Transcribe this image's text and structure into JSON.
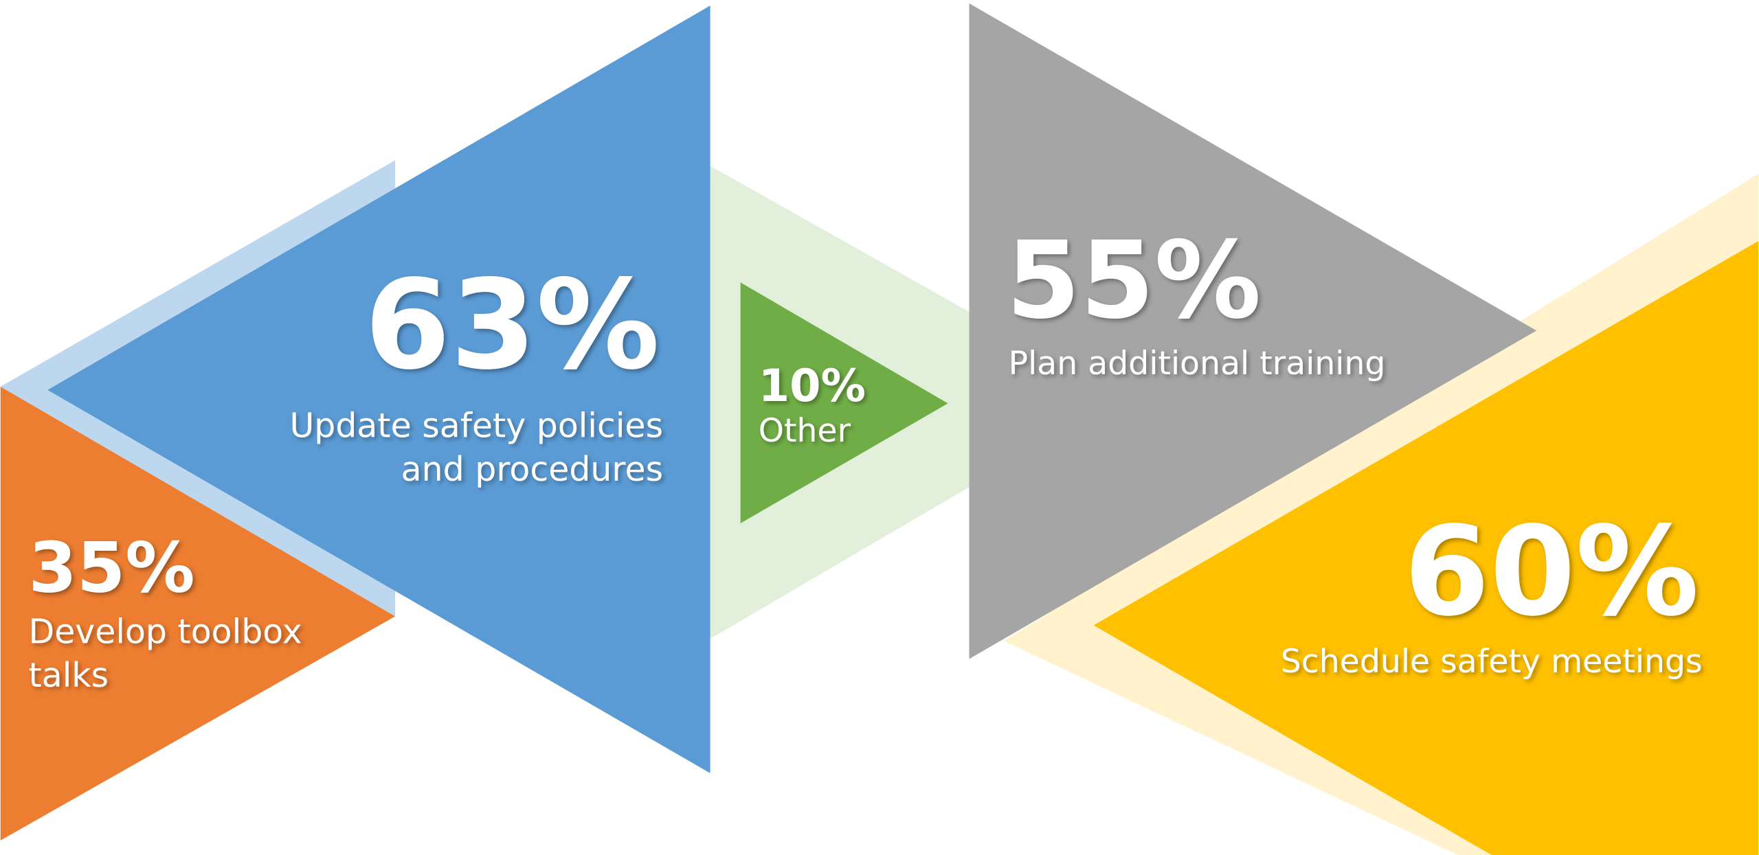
{
  "chart_data": {
    "type": "infographic",
    "items": [
      {
        "value": 63,
        "value_label": "63%",
        "label": [
          "Update safety policies",
          "and procedures"
        ],
        "color": "#5b9bd5",
        "back_color": "#bdd7ee"
      },
      {
        "value": 35,
        "value_label": "35%",
        "label": [
          "Develop toolbox",
          "talks"
        ],
        "color": "#ed7d31"
      },
      {
        "value": 10,
        "value_label": "10%",
        "label": [
          "Other"
        ],
        "color": "#70ad47",
        "back_color": "#e2efda"
      },
      {
        "value": 55,
        "value_label": "55%",
        "label": [
          "Plan additional training"
        ],
        "color": "#a5a5a5"
      },
      {
        "value": 60,
        "value_label": "60%",
        "label": [
          "Schedule safety meetings"
        ],
        "color": "#ffc000",
        "back_color": "#fff2cc"
      }
    ]
  }
}
